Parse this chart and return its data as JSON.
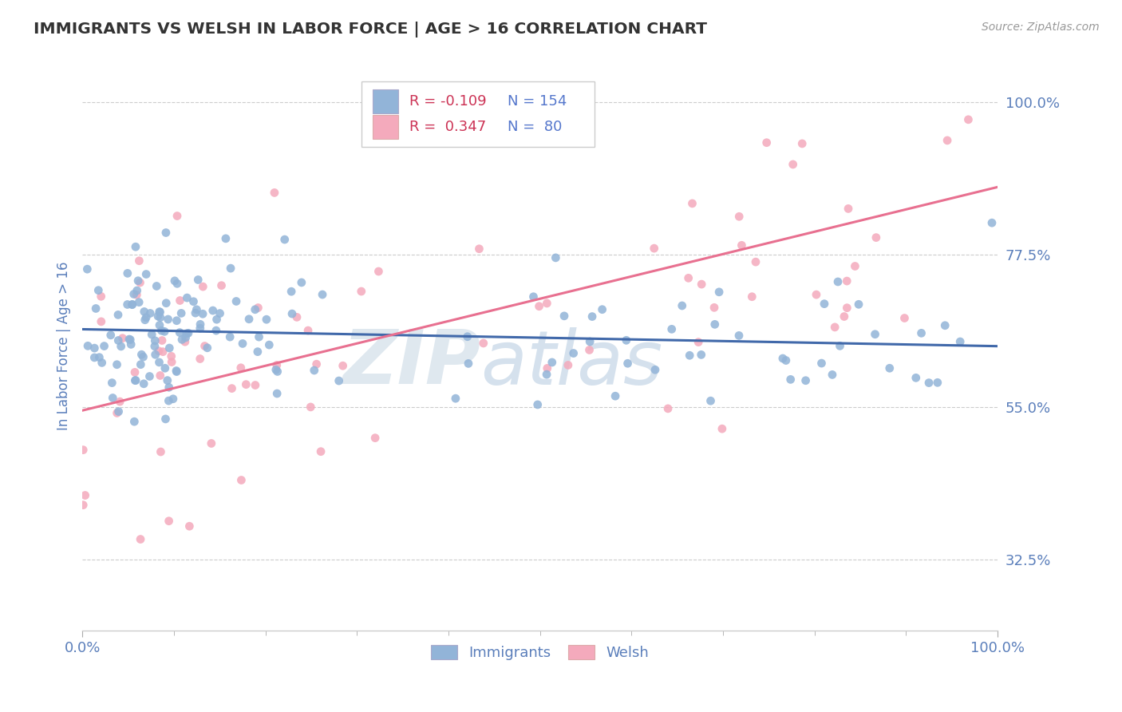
{
  "title": "IMMIGRANTS VS WELSH IN LABOR FORCE | AGE > 16 CORRELATION CHART",
  "source_text": "Source: ZipAtlas.com",
  "ylabel": "In Labor Force | Age > 16",
  "watermark_zip": "ZIP",
  "watermark_atlas": "atlas",
  "xlim": [
    0.0,
    1.0
  ],
  "ylim": [
    0.22,
    1.06
  ],
  "yticks": [
    0.325,
    0.55,
    0.775,
    1.0
  ],
  "ytick_labels": [
    "32.5%",
    "55.0%",
    "77.5%",
    "100.0%"
  ],
  "legend_immigrants_R": "-0.109",
  "legend_immigrants_N": "154",
  "legend_welsh_R": "0.347",
  "legend_welsh_N": "80",
  "immigrants_color": "#92B4D8",
  "welsh_color": "#F4AABC",
  "immigrants_line_color": "#4169AA",
  "welsh_line_color": "#E87090",
  "axis_label_color": "#5B7FBB",
  "grid_color": "#CCCCCC",
  "background_color": "#FFFFFF",
  "legend_R_color": "#CC3355",
  "legend_N_color": "#5577CC",
  "immigrants_trend_y0": 0.665,
  "immigrants_trend_y1": 0.64,
  "welsh_trend_y0": 0.545,
  "welsh_trend_y1": 0.875
}
